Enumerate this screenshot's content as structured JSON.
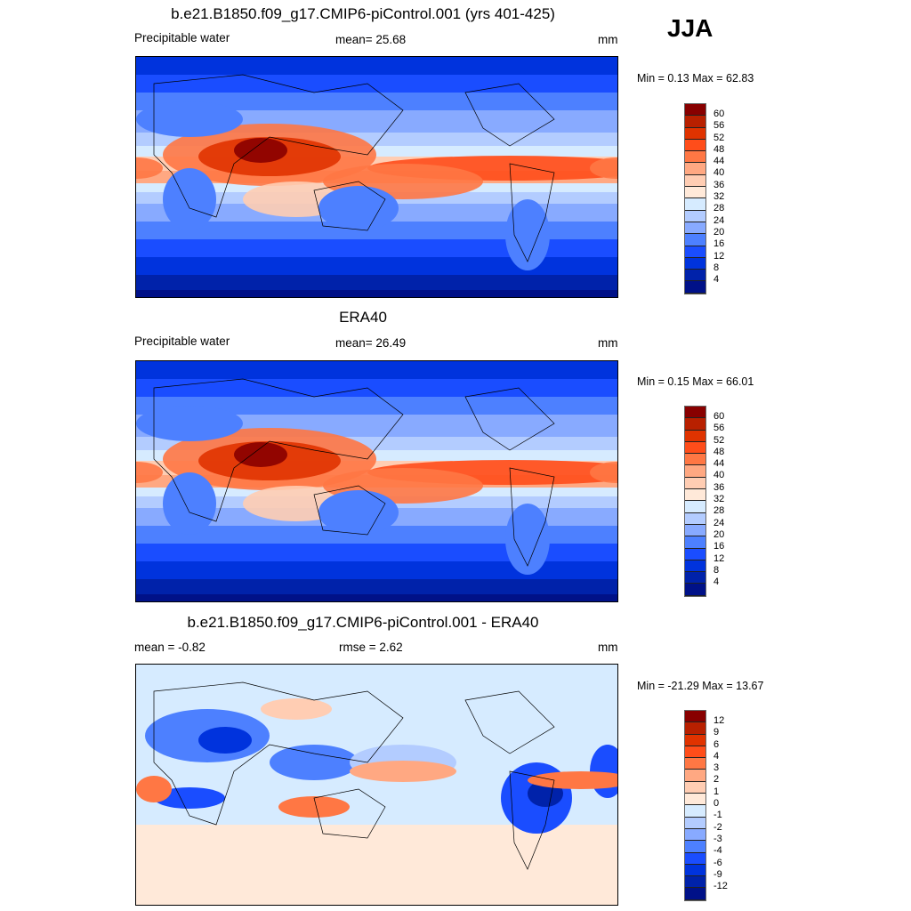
{
  "season": "JJA",
  "colors": [
    "#880000",
    "#b82000",
    "#e03300",
    "#ff4d1a",
    "#ff7744",
    "#ffa882",
    "#ffcdb3",
    "#ffe9d9",
    "#d6ebff",
    "#b3ccff",
    "#88aaff",
    "#4d80ff",
    "#1a4dff",
    "#0033dd",
    "#0022aa",
    "#001188"
  ],
  "panels": [
    {
      "title": "b.e21.B1850.f09_g17.CMIP6-piControl.001 (yrs 401-425)",
      "left": "Precipitable water",
      "center": "mean=  25.68",
      "units": "mm",
      "minmax": "Min =   0.13 Max =  62.83",
      "levels": [
        "60",
        "56",
        "52",
        "48",
        "44",
        "40",
        "36",
        "32",
        "28",
        "24",
        "20",
        "16",
        "12",
        "8",
        "4"
      ],
      "type": "field"
    },
    {
      "title": "ERA40",
      "left": "Precipitable water",
      "center": "mean=  26.49",
      "units": "mm",
      "minmax": "Min =   0.15 Max =  66.01",
      "levels": [
        "60",
        "56",
        "52",
        "48",
        "44",
        "40",
        "36",
        "32",
        "28",
        "24",
        "20",
        "16",
        "12",
        "8",
        "4"
      ],
      "type": "field"
    },
    {
      "title": "b.e21.B1850.f09_g17.CMIP6-piControl.001 - ERA40",
      "left": "mean =  -0.82",
      "center": "rmse =   2.62",
      "units": "mm",
      "minmax": "Min = -21.29 Max =  13.67",
      "levels": [
        "12",
        "9",
        "6",
        "4",
        "3",
        "2",
        "1",
        "0",
        "-1",
        "-2",
        "-3",
        "-4",
        "-6",
        "-9",
        "-12"
      ],
      "type": "difference"
    }
  ]
}
